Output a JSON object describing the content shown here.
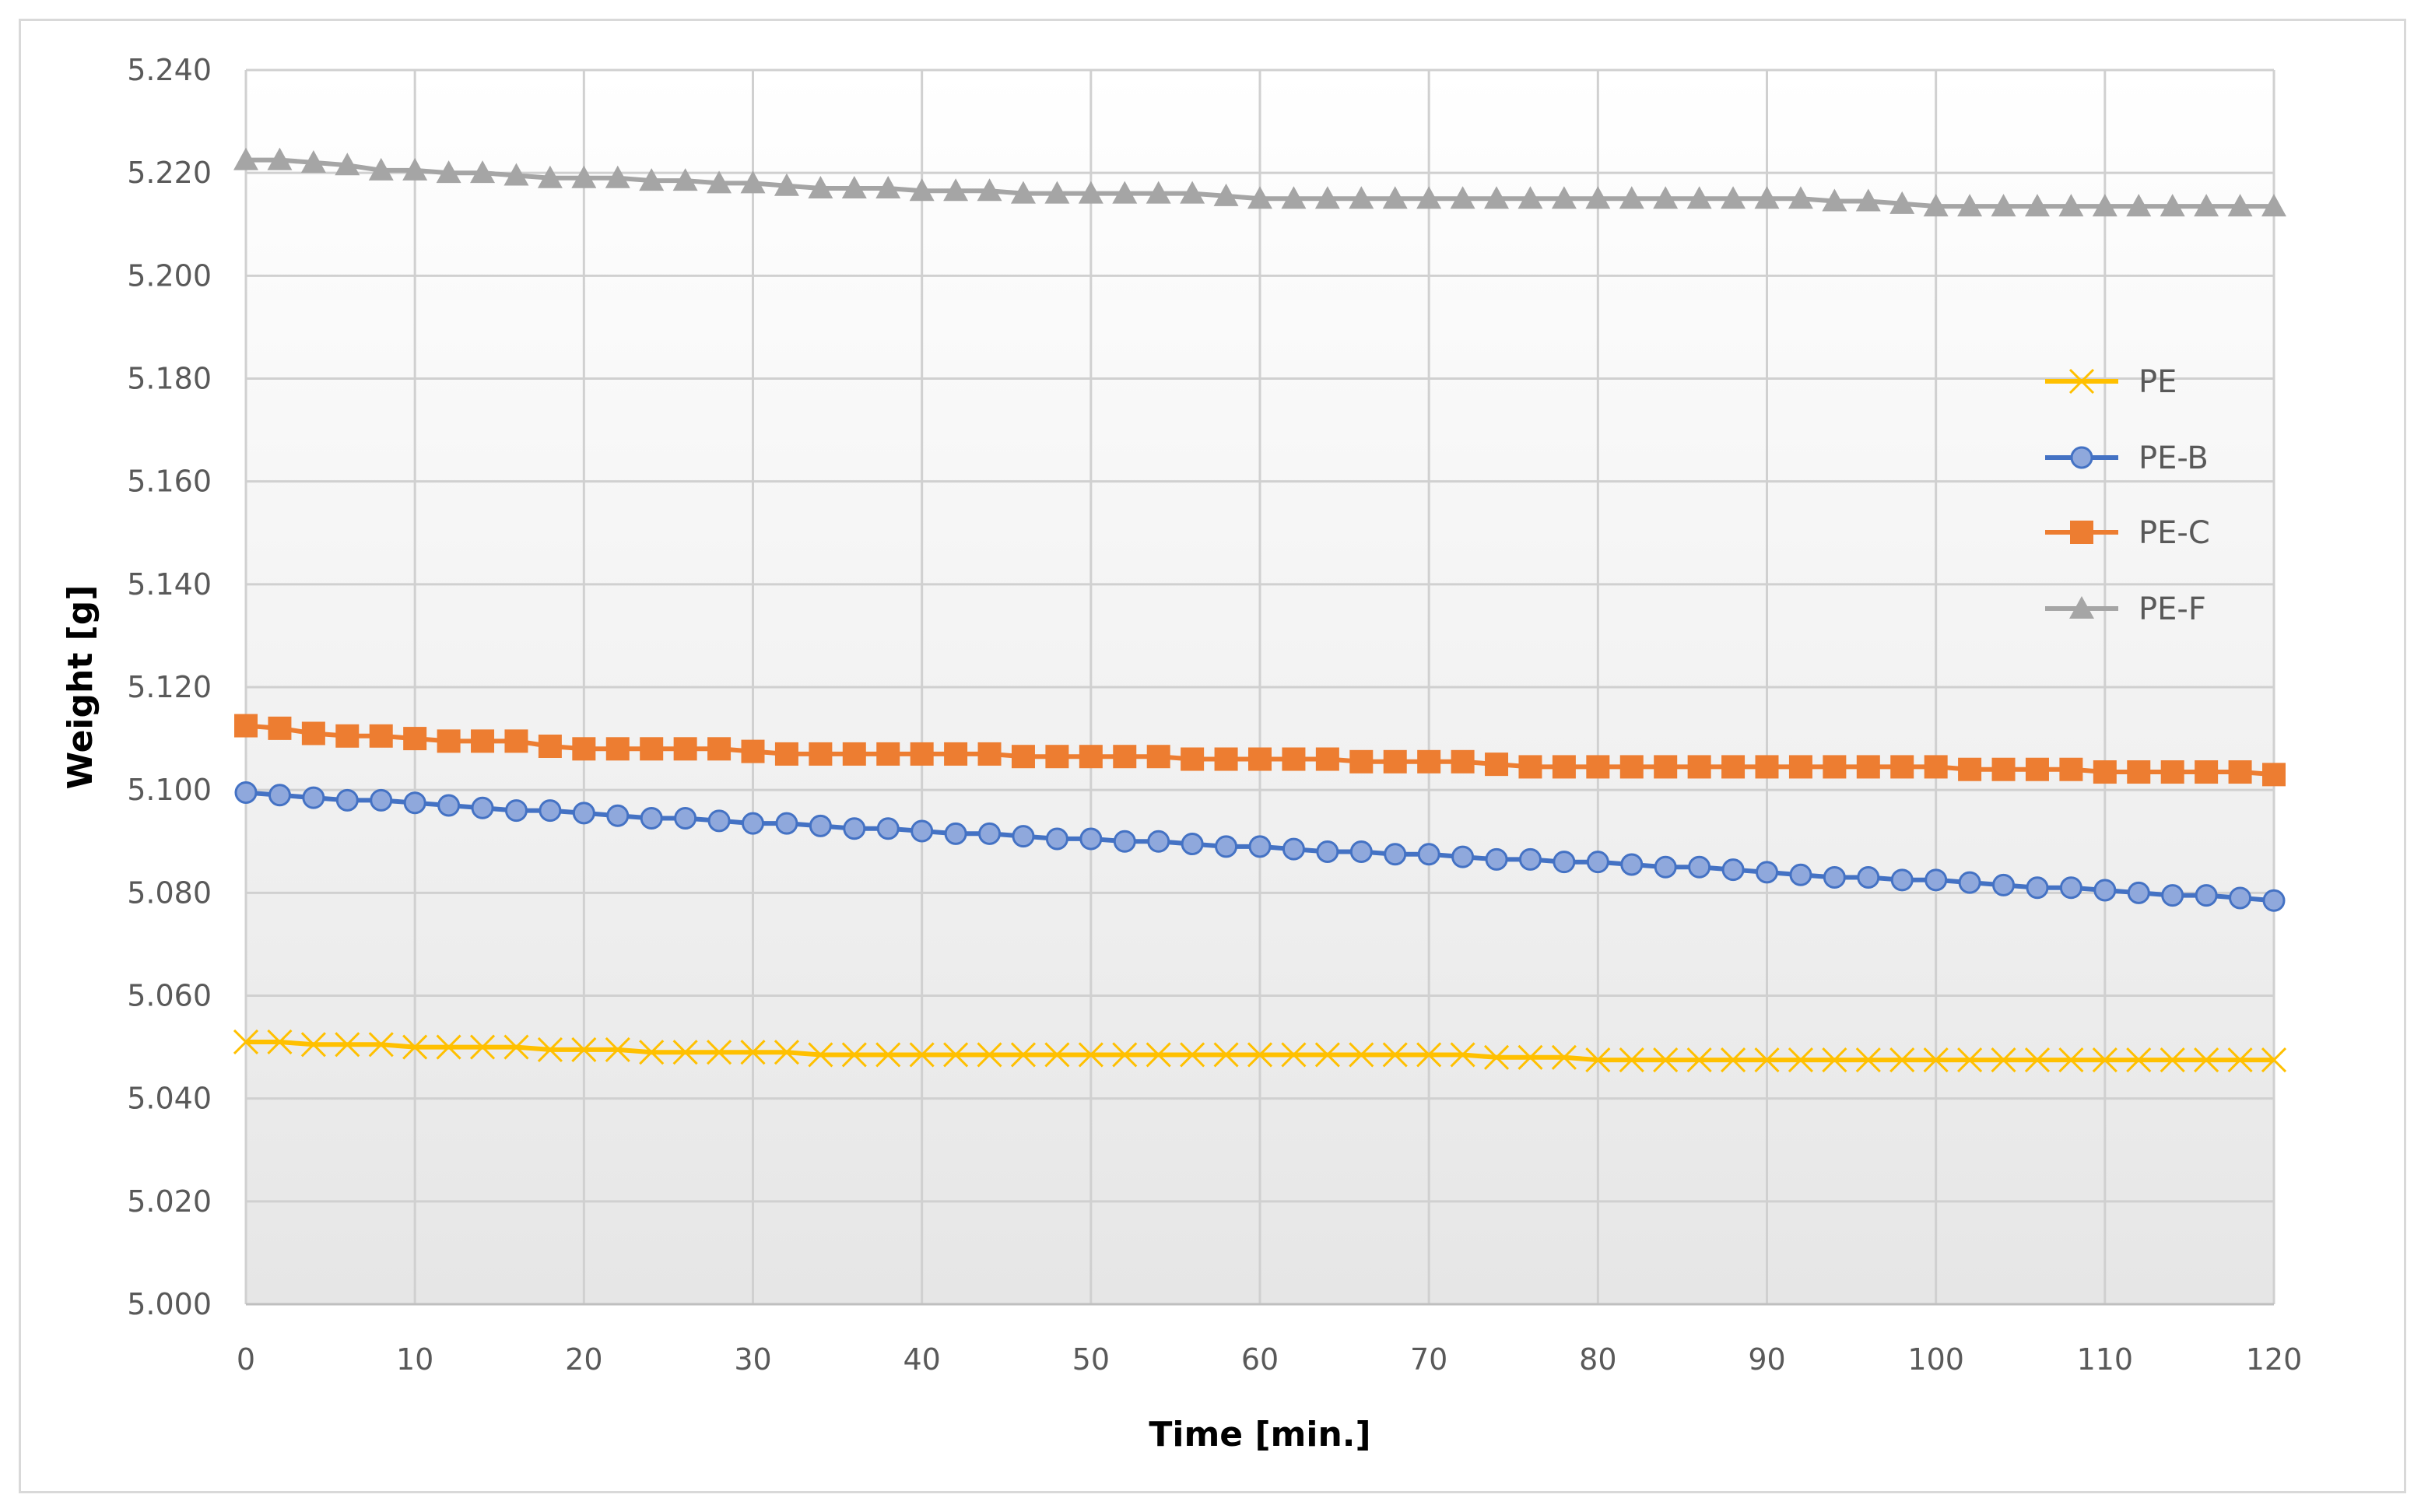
{
  "chart_data": {
    "type": "line",
    "xlabel": "Time [min.]",
    "ylabel": "Weight [g]",
    "xlim": [
      0,
      120
    ],
    "ylim": [
      5.0,
      5.24
    ],
    "x_ticks": [
      "0",
      "10",
      "20",
      "30",
      "40",
      "50",
      "60",
      "70",
      "80",
      "90",
      "100",
      "110",
      "120"
    ],
    "y_ticks": [
      "5.000",
      "5.020",
      "5.040",
      "5.060",
      "5.080",
      "5.100",
      "5.120",
      "5.140",
      "5.160",
      "5.180",
      "5.200",
      "5.220",
      "5.240"
    ],
    "grid": true,
    "legend_position": "right",
    "x": [
      0,
      2,
      4,
      6,
      8,
      10,
      12,
      14,
      16,
      18,
      20,
      22,
      24,
      26,
      28,
      30,
      32,
      34,
      36,
      38,
      40,
      42,
      44,
      46,
      48,
      50,
      52,
      54,
      56,
      58,
      60,
      62,
      64,
      66,
      68,
      70,
      72,
      74,
      76,
      78,
      80,
      82,
      84,
      86,
      88,
      90,
      92,
      94,
      96,
      98,
      100,
      102,
      104,
      106,
      108,
      110,
      112,
      114,
      116,
      118,
      120
    ],
    "series": [
      {
        "name": "PE",
        "color": "#FFC000",
        "marker": "x",
        "values": [
          5.051,
          5.051,
          5.0505,
          5.0505,
          5.0505,
          5.05,
          5.05,
          5.05,
          5.05,
          5.0495,
          5.0495,
          5.0495,
          5.049,
          5.049,
          5.049,
          5.049,
          5.049,
          5.0485,
          5.0485,
          5.0485,
          5.0485,
          5.0485,
          5.0485,
          5.0485,
          5.0485,
          5.0485,
          5.0485,
          5.0485,
          5.0485,
          5.0485,
          5.0485,
          5.0485,
          5.0485,
          5.0485,
          5.0485,
          5.0485,
          5.0485,
          5.048,
          5.048,
          5.048,
          5.0475,
          5.0475,
          5.0475,
          5.0475,
          5.0475,
          5.0475,
          5.0475,
          5.0475,
          5.0475,
          5.0475,
          5.0475,
          5.0475,
          5.0475,
          5.0475,
          5.0475,
          5.0475,
          5.0475,
          5.0475,
          5.0475,
          5.0475,
          5.0475
        ]
      },
      {
        "name": "PE-B",
        "color": "#4472C4",
        "marker": "circle",
        "values": [
          5.0995,
          5.099,
          5.0985,
          5.098,
          5.098,
          5.0975,
          5.097,
          5.0965,
          5.096,
          5.096,
          5.0955,
          5.095,
          5.0945,
          5.0945,
          5.094,
          5.0935,
          5.0935,
          5.093,
          5.0925,
          5.0925,
          5.092,
          5.0915,
          5.0915,
          5.091,
          5.0905,
          5.0905,
          5.09,
          5.09,
          5.0895,
          5.089,
          5.089,
          5.0885,
          5.088,
          5.088,
          5.0875,
          5.0875,
          5.087,
          5.0865,
          5.0865,
          5.086,
          5.086,
          5.0855,
          5.085,
          5.085,
          5.0845,
          5.084,
          5.0835,
          5.083,
          5.083,
          5.0825,
          5.0825,
          5.082,
          5.0815,
          5.081,
          5.081,
          5.0805,
          5.08,
          5.0795,
          5.0795,
          5.079,
          5.0785
        ]
      },
      {
        "name": "PE-C",
        "color": "#ED7D31",
        "marker": "square",
        "values": [
          5.1125,
          5.112,
          5.111,
          5.1105,
          5.1105,
          5.11,
          5.1095,
          5.1095,
          5.1095,
          5.1085,
          5.108,
          5.108,
          5.108,
          5.108,
          5.108,
          5.1075,
          5.107,
          5.107,
          5.107,
          5.107,
          5.107,
          5.107,
          5.107,
          5.1065,
          5.1065,
          5.1065,
          5.1065,
          5.1065,
          5.106,
          5.106,
          5.106,
          5.106,
          5.106,
          5.1055,
          5.1055,
          5.1055,
          5.1055,
          5.105,
          5.1045,
          5.1045,
          5.1045,
          5.1045,
          5.1045,
          5.1045,
          5.1045,
          5.1045,
          5.1045,
          5.1045,
          5.1045,
          5.1045,
          5.1045,
          5.104,
          5.104,
          5.104,
          5.104,
          5.1035,
          5.1035,
          5.1035,
          5.1035,
          5.1035,
          5.103
        ]
      },
      {
        "name": "PE-F",
        "color": "#A5A5A5",
        "marker": "triangle",
        "values": [
          5.2225,
          5.2225,
          5.222,
          5.2215,
          5.2205,
          5.2205,
          5.22,
          5.22,
          5.2195,
          5.219,
          5.219,
          5.219,
          5.2185,
          5.2185,
          5.218,
          5.218,
          5.2175,
          5.217,
          5.217,
          5.217,
          5.2165,
          5.2165,
          5.2165,
          5.216,
          5.216,
          5.216,
          5.216,
          5.216,
          5.216,
          5.2155,
          5.215,
          5.215,
          5.215,
          5.215,
          5.215,
          5.215,
          5.215,
          5.215,
          5.215,
          5.215,
          5.215,
          5.215,
          5.215,
          5.215,
          5.215,
          5.215,
          5.215,
          5.2145,
          5.2145,
          5.214,
          5.2135,
          5.2135,
          5.2135,
          5.2135,
          5.2135,
          5.2135,
          5.2135,
          5.2135,
          5.2135,
          5.2135,
          5.2135
        ]
      }
    ]
  }
}
